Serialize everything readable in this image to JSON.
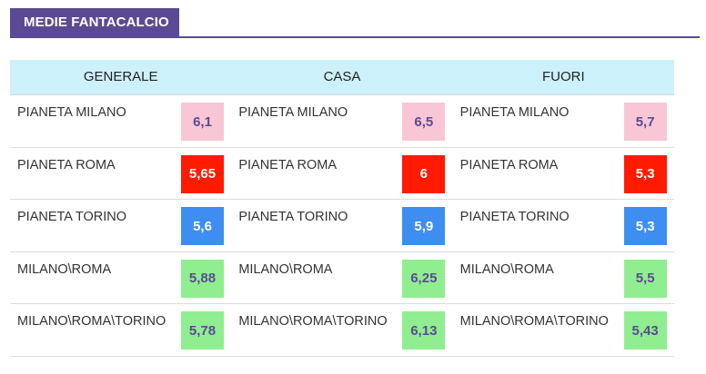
{
  "title": "MEDIE FANTACALCIO",
  "headers": [
    "GENERALE",
    "CASA",
    "FUORI"
  ],
  "colors": {
    "pink": "#f8c6d4",
    "red": "#ff1a00",
    "blue": "#3d8ef0",
    "green": "#90ee90",
    "purple_text": "#5b4a93"
  },
  "rows": [
    {
      "cells": [
        {
          "name": "PIANETA MILANO",
          "score": "6,1",
          "color": "pink"
        },
        {
          "name": "PIANETA MILANO",
          "score": "6,5",
          "color": "pink"
        },
        {
          "name": "PIANETA MILANO",
          "score": "5,7",
          "color": "pink"
        }
      ]
    },
    {
      "cells": [
        {
          "name": "PIANETA ROMA",
          "score": "5,65",
          "color": "red"
        },
        {
          "name": "PIANETA ROMA",
          "score": "6",
          "color": "red"
        },
        {
          "name": "PIANETA ROMA",
          "score": "5,3",
          "color": "red"
        }
      ]
    },
    {
      "cells": [
        {
          "name": "PIANETA TORINO",
          "score": "5,6",
          "color": "blue"
        },
        {
          "name": "PIANETA TORINO",
          "score": "5,9",
          "color": "blue"
        },
        {
          "name": "PIANETA TORINO",
          "score": "5,3",
          "color": "blue"
        }
      ]
    },
    {
      "cells": [
        {
          "name": "MILANO\\ROMA",
          "score": "5,88",
          "color": "green"
        },
        {
          "name": "MILANO\\ROMA",
          "score": "6,25",
          "color": "green"
        },
        {
          "name": "MILANO\\ROMA",
          "score": "5,5",
          "color": "green"
        }
      ]
    },
    {
      "cells": [
        {
          "name": "MILANO\\ROMA\\TORINO",
          "score": "5,78",
          "color": "green"
        },
        {
          "name": "MILANO\\ROMA\\TORINO",
          "score": "6,13",
          "color": "green"
        },
        {
          "name": "MILANO\\ROMA\\TORINO",
          "score": "5,43",
          "color": "green"
        }
      ]
    }
  ]
}
